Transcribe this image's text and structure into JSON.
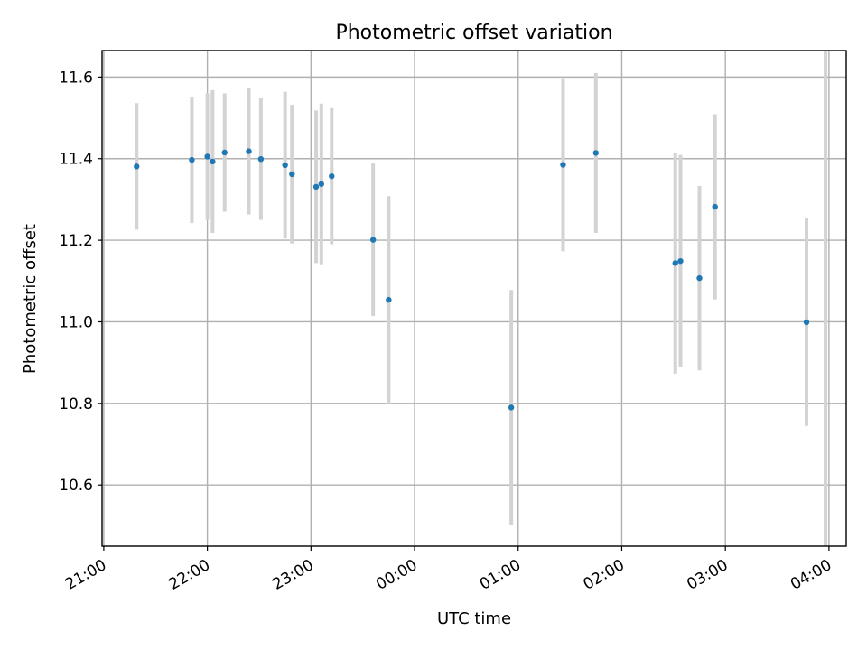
{
  "chart_data": {
    "type": "scatter",
    "title": "Photometric offset variation",
    "xlabel": "UTC time",
    "ylabel": "Photometric offset",
    "x_axis_type": "time",
    "x_ticks": [
      "21:00",
      "22:00",
      "23:00",
      "00:00",
      "01:00",
      "02:00",
      "03:00",
      "04:00"
    ],
    "y_ticks": [
      "10.6",
      "10.8",
      "11.0",
      "11.2",
      "11.4",
      "11.6"
    ],
    "xlim": [
      "20:59",
      "04:10"
    ],
    "ylim": [
      10.45,
      11.665
    ],
    "grid": true,
    "colors": {
      "point": "#1f77b4",
      "error_bar": "#d3d3d3",
      "grid": "#b0b0b0"
    },
    "error_bar_extends_off_plot": {
      "x": "03:58",
      "y_low": 10.45,
      "y_high": 11.665
    },
    "points": [
      {
        "x": "21:19",
        "y": 11.381,
        "err": 0.155
      },
      {
        "x": "21:51",
        "y": 11.397,
        "err": 0.155
      },
      {
        "x": "22:00",
        "y": 11.405,
        "err": 0.155
      },
      {
        "x": "22:03",
        "y": 11.393,
        "err": 0.175
      },
      {
        "x": "22:10",
        "y": 11.415,
        "err": 0.145
      },
      {
        "x": "22:24",
        "y": 11.418,
        "err": 0.155
      },
      {
        "x": "22:31",
        "y": 11.399,
        "err": 0.149
      },
      {
        "x": "22:45",
        "y": 11.384,
        "err": 0.18
      },
      {
        "x": "22:49",
        "y": 11.362,
        "err": 0.17
      },
      {
        "x": "23:03",
        "y": 11.331,
        "err": 0.187
      },
      {
        "x": "23:06",
        "y": 11.338,
        "err": 0.197
      },
      {
        "x": "23:12",
        "y": 11.357,
        "err": 0.167
      },
      {
        "x": "23:36",
        "y": 11.201,
        "err": 0.187
      },
      {
        "x": "23:45",
        "y": 11.054,
        "err": 0.254
      },
      {
        "x": "00:56",
        "y": 10.79,
        "err": 0.288
      },
      {
        "x": "01:26",
        "y": 11.385,
        "err": 0.212
      },
      {
        "x": "01:45",
        "y": 11.414,
        "err": 0.196
      },
      {
        "x": "02:31",
        "y": 11.144,
        "err": 0.271
      },
      {
        "x": "02:34",
        "y": 11.149,
        "err": 0.26
      },
      {
        "x": "02:45",
        "y": 11.107,
        "err": 0.226
      },
      {
        "x": "02:54",
        "y": 11.282,
        "err": 0.227
      },
      {
        "x": "03:47",
        "y": 10.999,
        "err": 0.254
      }
    ]
  }
}
